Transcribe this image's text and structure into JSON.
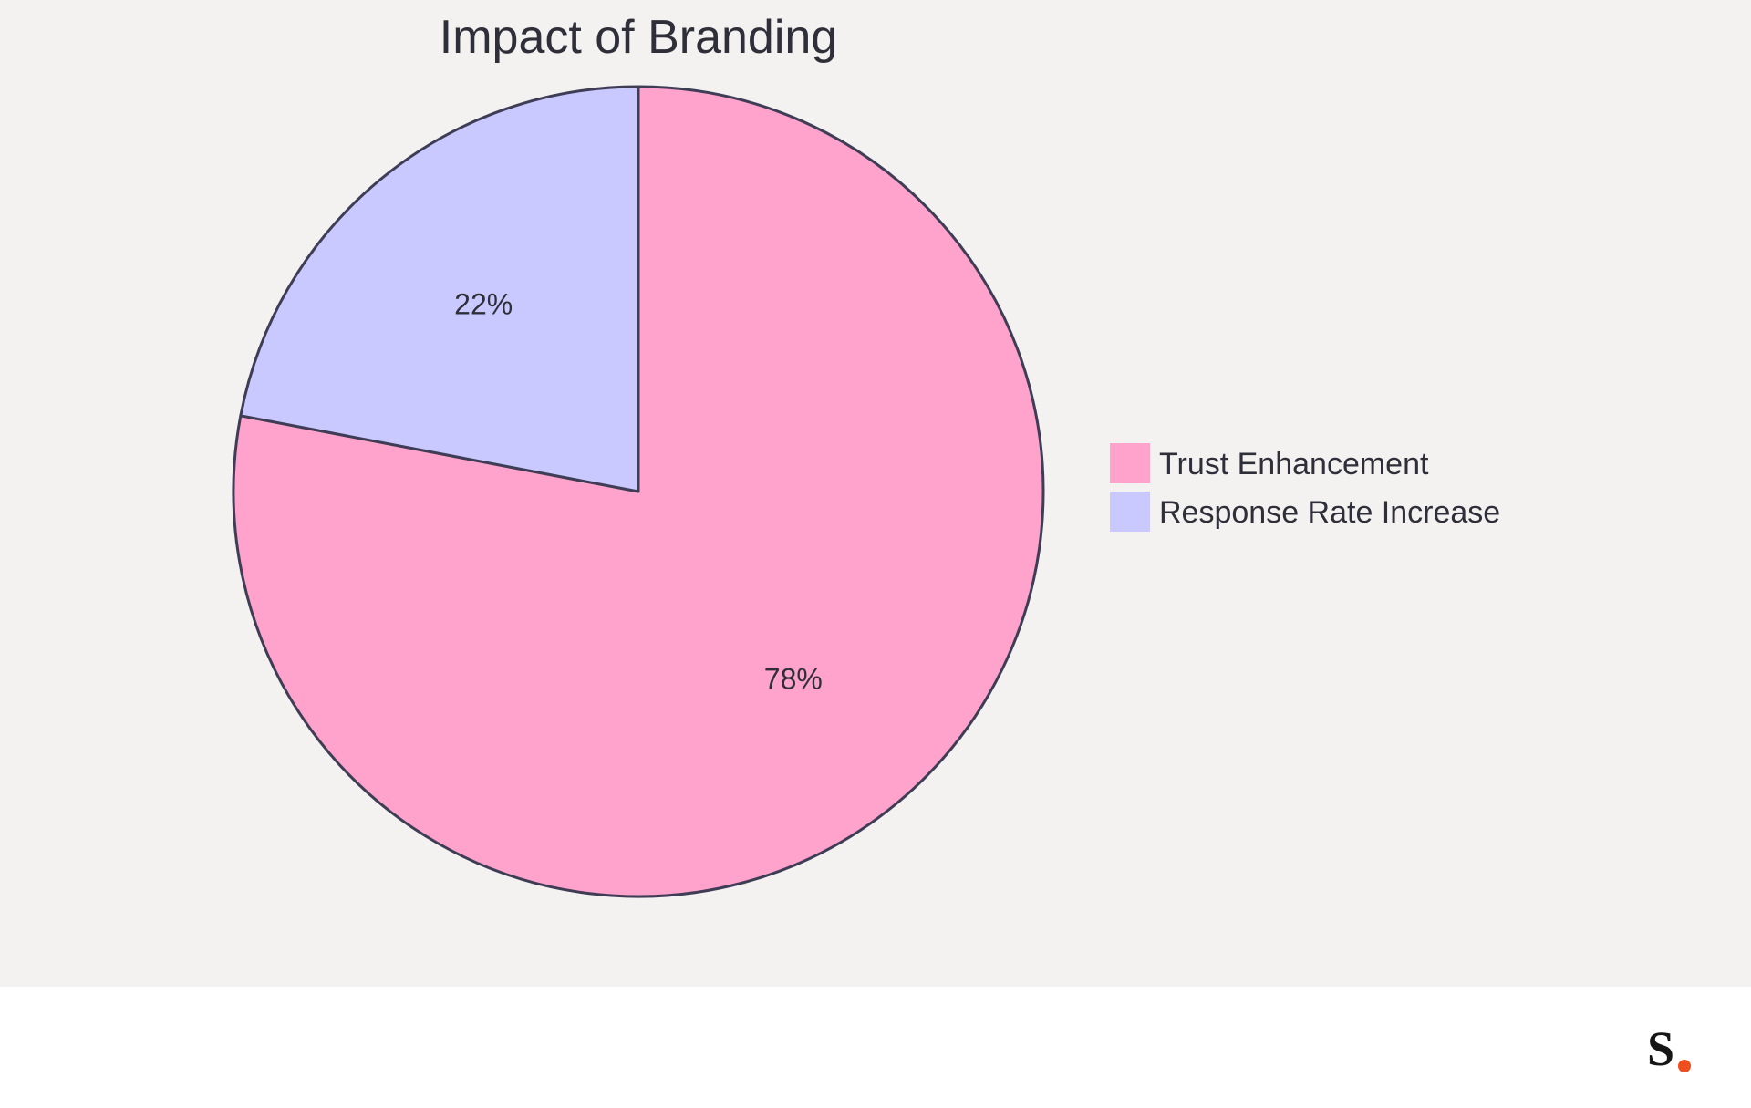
{
  "chart_data": {
    "type": "pie",
    "title": "Impact of Branding",
    "slices": [
      {
        "name": "Trust Enhancement",
        "value": 78,
        "label": "78%",
        "color": "#ffa3cc"
      },
      {
        "name": "Response Rate Increase",
        "value": 22,
        "label": "22%",
        "color": "#c9c9ff"
      }
    ],
    "legend": {
      "placement": "right",
      "entries": [
        "Trust Enhancement",
        "Response Rate Increase"
      ]
    },
    "outline_color": "#3f3d56"
  },
  "colors": {
    "background": "#f3f2f0",
    "footer": "#ffffff",
    "text": "#2f2f3a"
  },
  "brand": {
    "logo": "S",
    "dot_color": "#f04e1e"
  }
}
